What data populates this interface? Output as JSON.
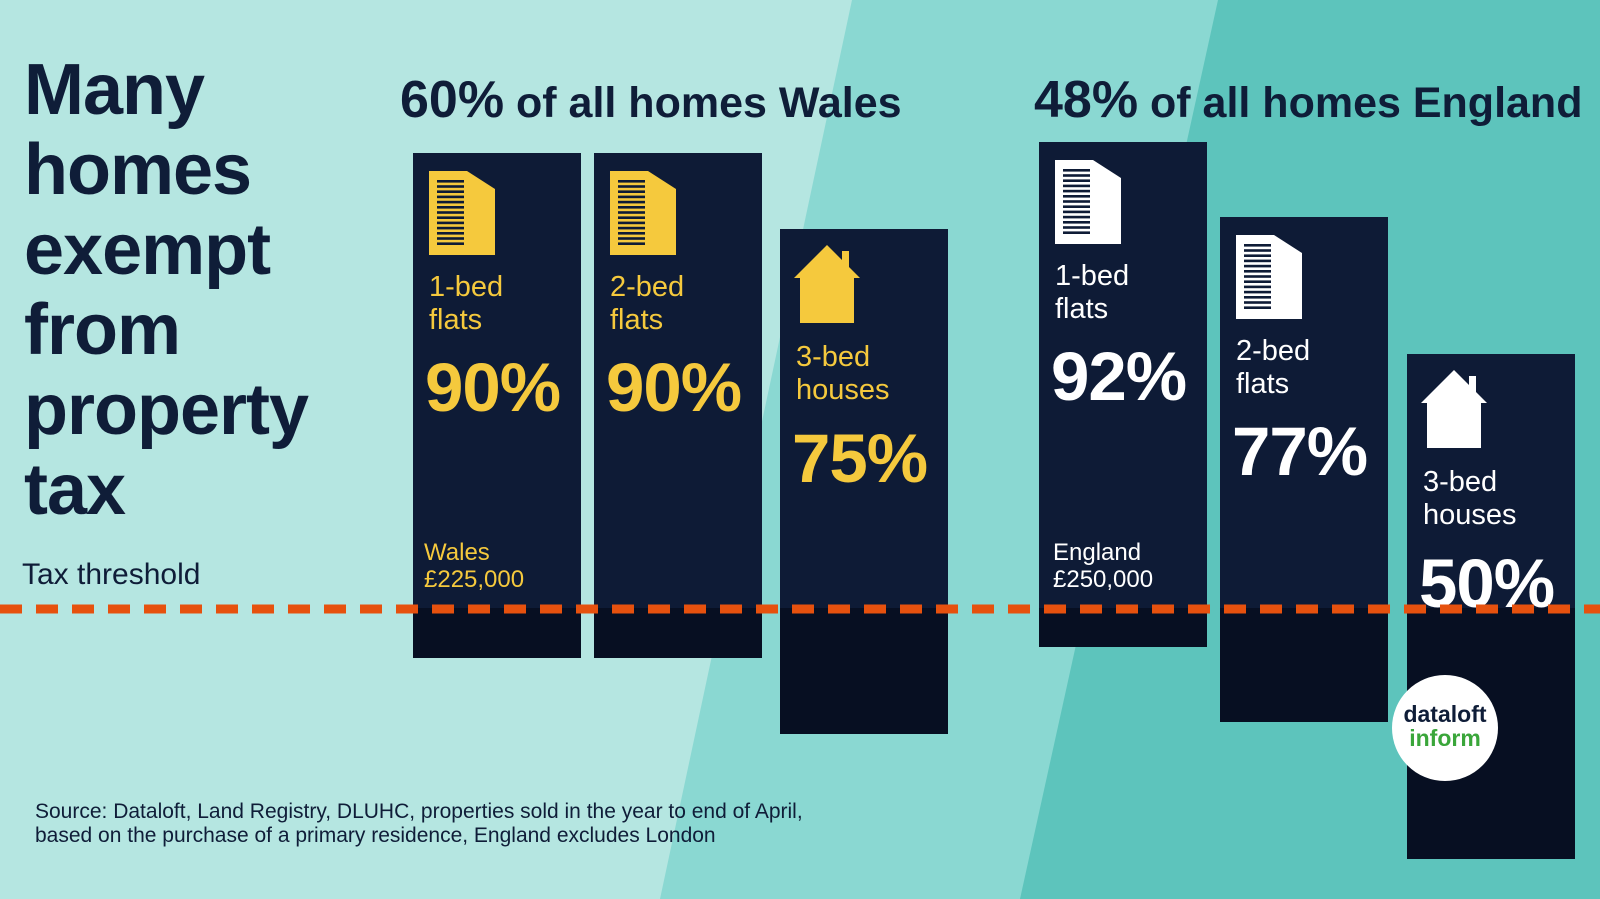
{
  "title": "Many homes exempt from property tax",
  "threshold_label": "Tax threshold",
  "colors": {
    "navy": "#0e1b36",
    "yellow": "#f5c93d",
    "threshold_line": "#e6510e",
    "bg_light": "#b5e6e1",
    "bg_mid": "#8ad8d2",
    "bg_dark": "#5dc4bc"
  },
  "wales": {
    "heading_pct": "60%",
    "heading_rest": " of all homes Wales",
    "threshold_note": "Wales\n£225,000",
    "accent": "yellow"
  },
  "england": {
    "heading_pct": "48%",
    "heading_rest": " of all homes England",
    "threshold_note": "England\n£250,000",
    "accent": "white"
  },
  "chart_data": {
    "type": "bar",
    "value_unit": "percent of homes exempt from property tax",
    "groups": [
      {
        "region": "Wales",
        "total": 60,
        "threshold": "£225,000",
        "categories": [
          {
            "label": "1-bed\nflats",
            "value": 90,
            "value_label": "90%",
            "icon": "flat-icon"
          },
          {
            "label": "2-bed\nflats",
            "value": 90,
            "value_label": "90%",
            "icon": "flat-icon"
          },
          {
            "label": "3-bed\nhouses",
            "value": 75,
            "value_label": "75%",
            "icon": "house-icon"
          }
        ]
      },
      {
        "region": "England",
        "total": 48,
        "threshold": "£250,000",
        "categories": [
          {
            "label": "1-bed\nflats",
            "value": 92,
            "value_label": "92%",
            "icon": "flat-icon"
          },
          {
            "label": "2-bed\nflats",
            "value": 77,
            "value_label": "77%",
            "icon": "flat-icon"
          },
          {
            "label": "3-bed\nhouses",
            "value": 50,
            "value_label": "50%",
            "icon": "house-icon"
          }
        ]
      }
    ]
  },
  "source": "Source: Dataloft, Land Registry, DLUHC, properties sold in the year to end of April,\nbased on the purchase of a primary residence, England excludes London",
  "logo": {
    "line1": "dataloft",
    "line2": "inform"
  }
}
